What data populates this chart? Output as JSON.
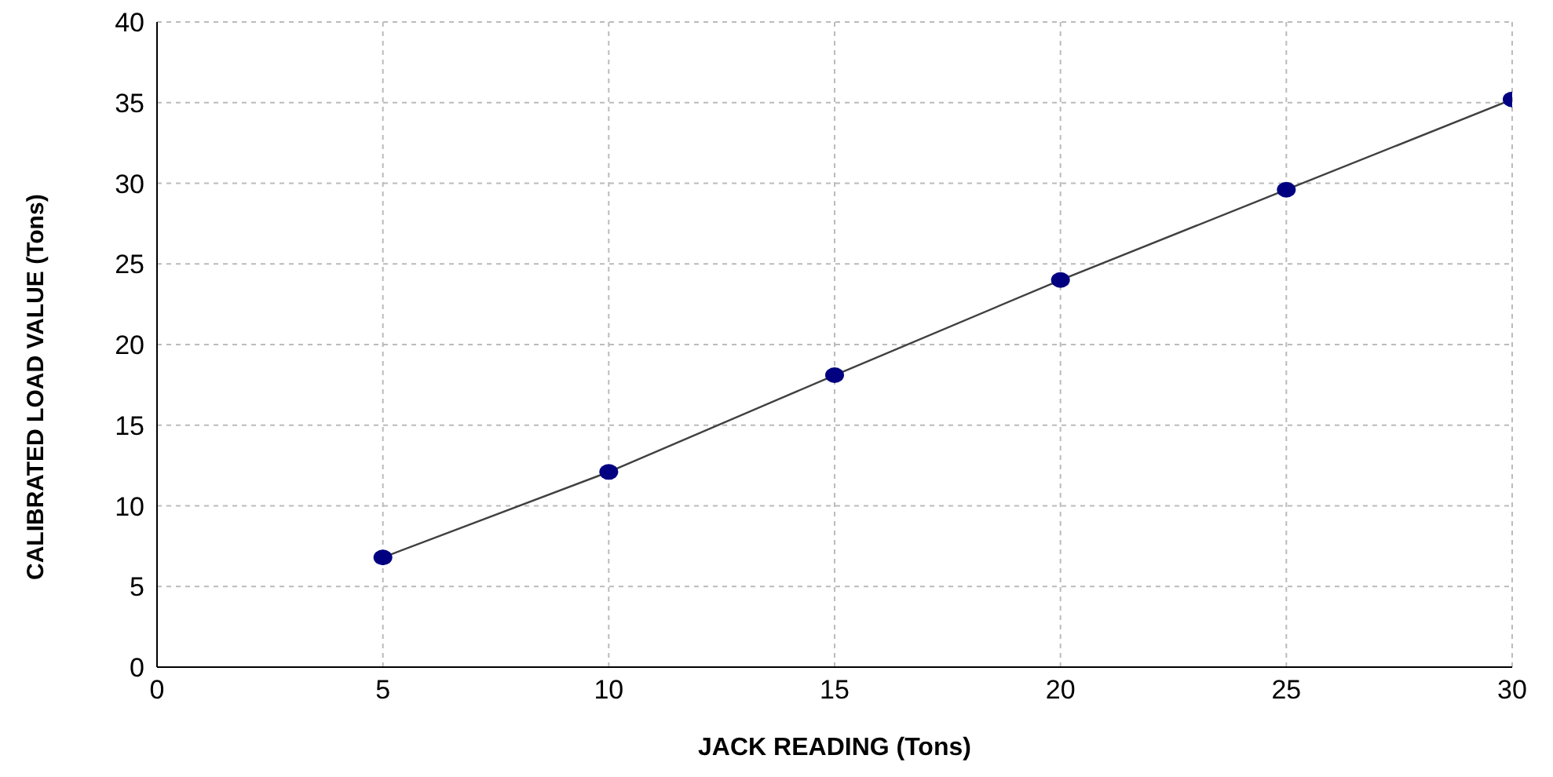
{
  "chart_data": {
    "type": "scatter",
    "xlabel": "JACK READING (Tons)",
    "ylabel": "CALIBRATED LOAD VALUE  (Tons)",
    "x": [
      5,
      10,
      15,
      20,
      25,
      30
    ],
    "series": [
      {
        "color": "#000080",
        "values": [
          6.8,
          12.1,
          18.1,
          24.0,
          29.6,
          35.2
        ]
      },
      {
        "type": "line",
        "marker": "none",
        "color": "#404040",
        "values": [
          6.8,
          12.1,
          18.1,
          24.0,
          29.6,
          35.2
        ]
      }
    ],
    "xlim": [
      0,
      30
    ],
    "xticks": [
      0,
      5,
      10,
      15,
      20,
      25,
      30
    ],
    "ylim": [
      0,
      40
    ],
    "yticks": [
      0,
      5,
      10,
      15,
      20,
      25,
      30,
      35,
      40
    ],
    "grid": true,
    "marker": "circle"
  }
}
